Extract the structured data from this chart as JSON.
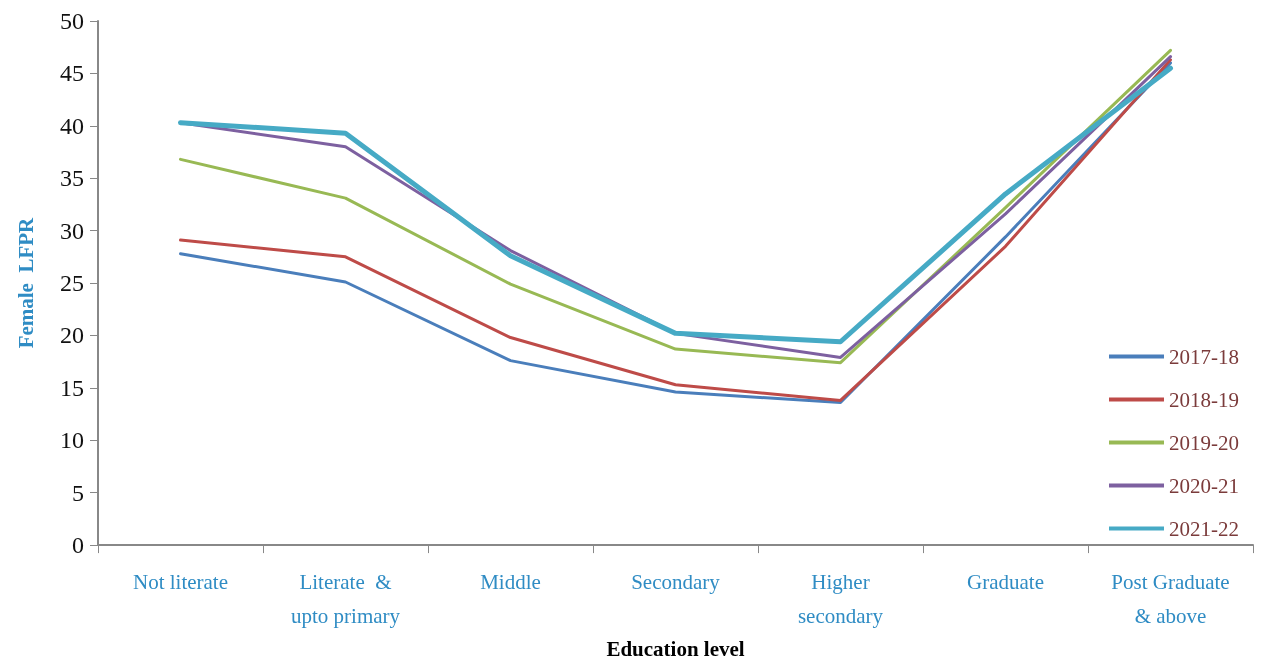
{
  "chart_data": {
    "type": "line",
    "xlabel": "Education level",
    "ylabel": "Female  LFPR",
    "categories": [
      "Not literate",
      "Literate  &\nupto primary",
      "Middle",
      "Secondary",
      "Higher\nsecondary",
      "Graduate",
      "Post Graduate\n& above"
    ],
    "series": [
      {
        "name": "2017-18",
        "color": "#4a7ebb",
        "values": [
          27.8,
          25.1,
          17.6,
          14.6,
          13.6,
          29.4,
          46
        ]
      },
      {
        "name": "2018-19",
        "color": "#be4b48",
        "values": [
          29.1,
          27.5,
          19.8,
          15.3,
          13.8,
          28.5,
          46.3
        ]
      },
      {
        "name": "2019-20",
        "color": "#98b954",
        "values": [
          36.8,
          33.1,
          24.9,
          18.7,
          17.4,
          32.2,
          47.2
        ]
      },
      {
        "name": "2020-21",
        "color": "#7d60a0",
        "values": [
          40.3,
          38,
          28.1,
          20.2,
          17.9,
          31.6,
          46.6
        ]
      },
      {
        "name": "2021-22",
        "color": "#46aac5",
        "values": [
          40.3,
          39.3,
          27.6,
          20.2,
          19.4,
          33.5,
          45.5
        ]
      }
    ],
    "ylim": [
      0,
      50
    ],
    "yticks": [
      0,
      5,
      10,
      15,
      20,
      25,
      30,
      35,
      40,
      45,
      50
    ],
    "grid": false,
    "legend": "bottom right",
    "marker": "none",
    "line_style": "solid"
  }
}
